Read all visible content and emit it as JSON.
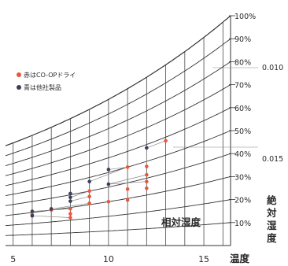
{
  "chart_data": {
    "type": "scatter",
    "xlabel": "温度",
    "x_ticks": [
      5,
      10,
      15
    ],
    "xlim": [
      4.6,
      16.4
    ],
    "rh_curves": [
      10,
      20,
      30,
      40,
      50,
      60,
      70,
      80,
      90,
      100
    ],
    "rh_labels": [
      "10%",
      "20%",
      "30%",
      "40%",
      "50%",
      "60%",
      "70%",
      "80%",
      "90%",
      "100%"
    ],
    "rh_axis_label": "相対湿度",
    "ah_axis_label": [
      "絶",
      "対",
      "湿",
      "度"
    ],
    "ah_ticks": [
      "0.010",
      "0.015"
    ],
    "legend": [
      {
        "label": "赤はCO-OPドライ",
        "color": "#e8573c"
      },
      {
        "label": "青は他社製品",
        "color": "#3a3f55"
      }
    ],
    "series": [
      {
        "name": "赤はCO-OPドライ",
        "color": "#e8573c",
        "points": [
          {
            "x": 6,
            "rh": 28
          },
          {
            "x": 7,
            "rh": 30
          },
          {
            "x": 8,
            "rh": 22
          },
          {
            "x": 8,
            "rh": 25
          },
          {
            "x": 8,
            "rh": 29
          },
          {
            "x": 9,
            "rh": 31
          },
          {
            "x": 9,
            "rh": 36
          },
          {
            "x": 9,
            "rh": 40
          },
          {
            "x": 10,
            "rh": 30
          },
          {
            "x": 11,
            "rh": 29
          },
          {
            "x": 11,
            "rh": 36
          },
          {
            "x": 11,
            "rh": 50
          },
          {
            "x": 12,
            "rh": 34
          },
          {
            "x": 12,
            "rh": 38
          },
          {
            "x": 12,
            "rh": 42
          },
          {
            "x": 12,
            "rh": 47
          },
          {
            "x": 13,
            "rh": 58
          }
        ]
      },
      {
        "name": "青は他社製品",
        "color": "#3a3f55",
        "points": [
          {
            "x": 6,
            "rh": 27
          },
          {
            "x": 6,
            "rh": 31
          },
          {
            "x": 7,
            "rh": 31
          },
          {
            "x": 8,
            "rh": 35
          },
          {
            "x": 8,
            "rh": 38
          },
          {
            "x": 8,
            "rh": 41
          },
          {
            "x": 9,
            "rh": 47
          },
          {
            "x": 10,
            "rh": 42
          },
          {
            "x": 10,
            "rh": 52
          },
          {
            "x": 12,
            "rh": 58
          }
        ]
      }
    ],
    "connectors": [
      [
        {
          "x": 6,
          "rh": 31
        },
        {
          "x": 8,
          "rh": 29
        }
      ],
      [
        {
          "x": 6,
          "rh": 27
        },
        {
          "x": 8,
          "rh": 22
        }
      ],
      [
        {
          "x": 7,
          "rh": 31
        },
        {
          "x": 9,
          "rh": 31
        }
      ],
      [
        {
          "x": 8,
          "rh": 35
        },
        {
          "x": 9,
          "rh": 36
        }
      ],
      [
        {
          "x": 8,
          "rh": 38
        },
        {
          "x": 9,
          "rh": 40
        }
      ],
      [
        {
          "x": 9,
          "rh": 47
        },
        {
          "x": 11,
          "rh": 50
        }
      ],
      [
        {
          "x": 10,
          "rh": 52
        },
        {
          "x": 11,
          "rh": 50
        }
      ],
      [
        {
          "x": 10,
          "rh": 42
        },
        {
          "x": 12,
          "rh": 42
        }
      ],
      [
        {
          "x": 10,
          "rh": 42
        },
        {
          "x": 12,
          "rh": 38
        }
      ],
      [
        {
          "x": 12,
          "rh": 58
        },
        {
          "x": 13,
          "rh": 58
        }
      ],
      [
        {
          "x": 12,
          "rh": 58
        },
        {
          "x": 12,
          "rh": 47
        }
      ]
    ]
  }
}
